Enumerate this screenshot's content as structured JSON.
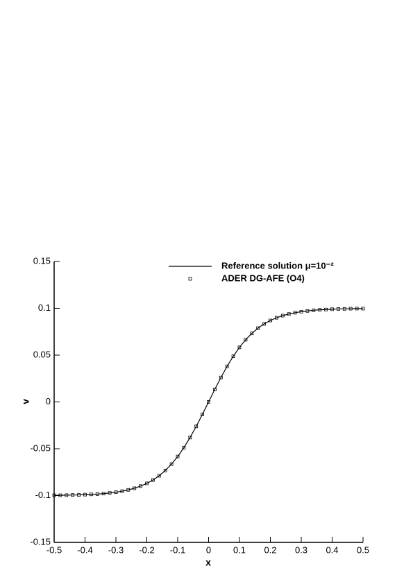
{
  "chart_data": {
    "type": "line",
    "xlabel": "x",
    "ylabel": "v",
    "xlim": [
      -0.5,
      0.5
    ],
    "ylim": [
      -0.15,
      0.15
    ],
    "xticks": [
      -0.5,
      -0.4,
      -0.3,
      -0.2,
      -0.1,
      0,
      0.1,
      0.2,
      0.3,
      0.4,
      0.5
    ],
    "yticks": [
      -0.15,
      -0.1,
      -0.05,
      0,
      0.05,
      0.1,
      0.15
    ],
    "x": [
      -0.5,
      -0.48,
      -0.46,
      -0.44,
      -0.42,
      -0.4,
      -0.38,
      -0.36,
      -0.34,
      -0.32,
      -0.3,
      -0.28,
      -0.26,
      -0.24,
      -0.22,
      -0.2,
      -0.18,
      -0.16,
      -0.14,
      -0.12,
      -0.1,
      -0.08,
      -0.06,
      -0.04,
      -0.02,
      0,
      0.02,
      0.04,
      0.06,
      0.08,
      0.1,
      0.12,
      0.14,
      0.16,
      0.18,
      0.2,
      0.22,
      0.24,
      0.26,
      0.28,
      0.3,
      0.32,
      0.34,
      0.36,
      0.38,
      0.4,
      0.42,
      0.44,
      0.46,
      0.48,
      0.5
    ],
    "series": [
      {
        "name": "Reference solution  μ=10⁻²",
        "style": "line",
        "color": "#000000",
        "values": [
          -0.0997,
          -0.0997,
          -0.0996,
          -0.0994,
          -0.0993,
          -0.099,
          -0.0987,
          -0.0984,
          -0.0979,
          -0.0972,
          -0.0964,
          -0.0953,
          -0.0939,
          -0.0922,
          -0.0899,
          -0.087,
          -0.0834,
          -0.0788,
          -0.0732,
          -0.0664,
          -0.0583,
          -0.0488,
          -0.038,
          -0.0261,
          -0.0133,
          0,
          0.0133,
          0.0261,
          0.038,
          0.0488,
          0.0583,
          0.0664,
          0.0732,
          0.0788,
          0.0834,
          0.087,
          0.0899,
          0.0922,
          0.0939,
          0.0953,
          0.0964,
          0.0972,
          0.0979,
          0.0984,
          0.0987,
          0.099,
          0.0993,
          0.0994,
          0.0996,
          0.0997,
          0.0997
        ]
      },
      {
        "name": "ADER DG-AFE (O4)",
        "style": "markers",
        "color": "#000000",
        "values": [
          -0.0997,
          -0.0997,
          -0.0996,
          -0.0994,
          -0.0993,
          -0.099,
          -0.0987,
          -0.0984,
          -0.0979,
          -0.0972,
          -0.0964,
          -0.0953,
          -0.0939,
          -0.0922,
          -0.0899,
          -0.087,
          -0.0834,
          -0.0788,
          -0.0732,
          -0.0664,
          -0.0583,
          -0.0488,
          -0.038,
          -0.0261,
          -0.0133,
          0,
          0.0133,
          0.0261,
          0.038,
          0.0488,
          0.0583,
          0.0664,
          0.0732,
          0.0788,
          0.0834,
          0.087,
          0.0899,
          0.0922,
          0.0939,
          0.0953,
          0.0964,
          0.0972,
          0.0979,
          0.0984,
          0.0987,
          0.099,
          0.0993,
          0.0994,
          0.0996,
          0.0997,
          0.0997
        ]
      }
    ]
  }
}
